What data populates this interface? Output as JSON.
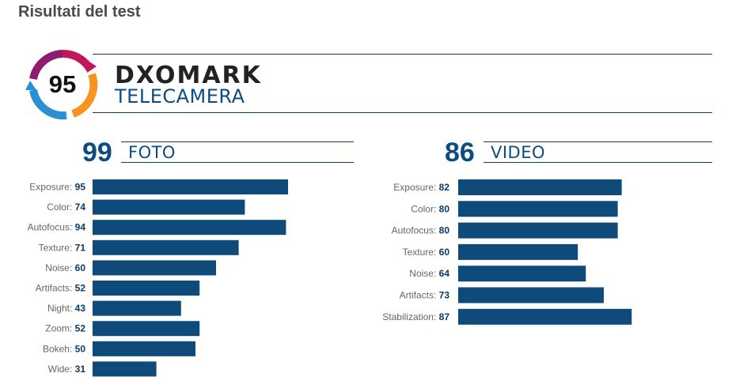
{
  "header": {
    "title": "Risultati del test"
  },
  "brand": {
    "overall_score": "95",
    "name": "DXOMARK",
    "category": "TELECAMERA",
    "colors": {
      "navy": "#0d3b63",
      "bar": "#0e4a7a",
      "score_text": "#0d4c80",
      "ring_magenta": "#c2185b",
      "ring_orange": "#f7941d",
      "ring_blue": "#2b8fd6"
    }
  },
  "photo": {
    "score": "99",
    "label": "FOTO"
  },
  "video": {
    "score": "86",
    "label": "VIDEO"
  },
  "chart_data": [
    {
      "type": "bar",
      "orientation": "horizontal",
      "title": "FOTO",
      "categories": [
        "Exposure:",
        "Color:",
        "Autofocus:",
        "Texture:",
        "Noise:",
        "Artifacts:",
        "Night:",
        "Zoom:",
        "Bokeh:",
        "Wide:"
      ],
      "values": [
        95,
        74,
        94,
        71,
        60,
        52,
        43,
        52,
        50,
        31
      ]
    },
    {
      "type": "bar",
      "orientation": "horizontal",
      "title": "VIDEO",
      "categories": [
        "Exposure:",
        "Color:",
        "Autofocus:",
        "Texture:",
        "Noise:",
        "Artifacts:",
        "Stabilization:"
      ],
      "values": [
        82,
        80,
        80,
        60,
        64,
        73,
        87
      ]
    }
  ]
}
